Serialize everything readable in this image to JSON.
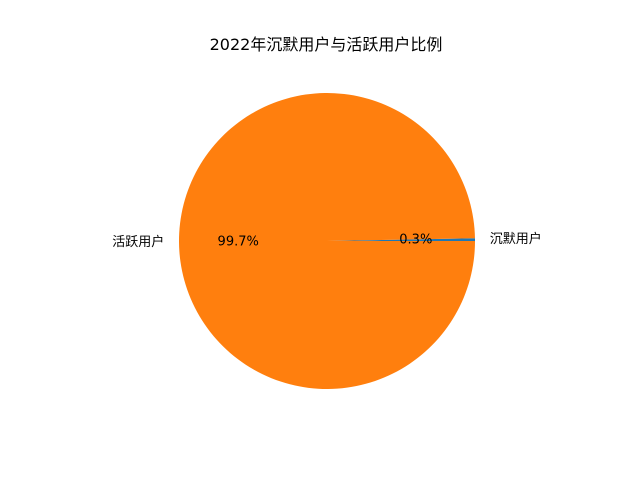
{
  "chart_data": {
    "type": "pie",
    "title": "2022年沉默用户与活跃用户比例",
    "start_angle_deg": 0,
    "counterclockwise": true,
    "slices": [
      {
        "label": "沉默用户",
        "value": 0.3,
        "pct_label": "0.3%",
        "color": "#1f77b4"
      },
      {
        "label": "活跃用户",
        "value": 99.7,
        "pct_label": "99.7%",
        "color": "#ff7f0e"
      }
    ]
  }
}
